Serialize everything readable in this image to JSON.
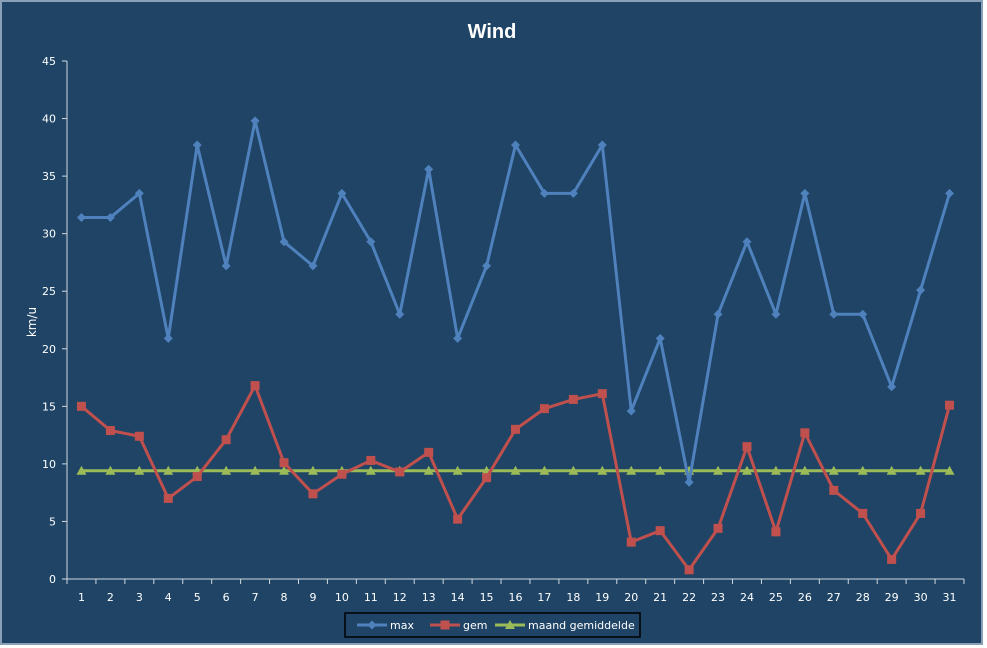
{
  "chart_data": {
    "type": "line",
    "title": "Wind",
    "xlabel": "",
    "ylabel": "km/u",
    "categories": [
      "1",
      "2",
      "3",
      "4",
      "5",
      "6",
      "7",
      "8",
      "9",
      "10",
      "11",
      "12",
      "13",
      "14",
      "15",
      "16",
      "17",
      "18",
      "19",
      "20",
      "21",
      "22",
      "23",
      "24",
      "25",
      "26",
      "27",
      "28",
      "29",
      "30",
      "31"
    ],
    "ylim": [
      0,
      45
    ],
    "yticks": [
      "0",
      "5",
      "10",
      "15",
      "20",
      "25",
      "30",
      "35",
      "40",
      "45"
    ],
    "grid": false,
    "legend_position": "bottom",
    "series": [
      {
        "name": "max",
        "color": "#4f81bd",
        "marker": "diamond",
        "values": [
          31.4,
          31.4,
          33.5,
          20.9,
          37.7,
          27.2,
          39.8,
          29.3,
          27.2,
          33.5,
          29.3,
          23.0,
          35.6,
          20.9,
          27.2,
          37.7,
          33.5,
          33.5,
          37.7,
          14.6,
          20.9,
          8.4,
          23.0,
          29.3,
          23.0,
          33.5,
          23.0,
          23.0,
          16.7,
          25.1,
          33.5
        ]
      },
      {
        "name": "gem",
        "color": "#c0504d",
        "marker": "square",
        "values": [
          15.0,
          12.9,
          12.4,
          7.0,
          8.9,
          12.1,
          16.8,
          10.1,
          7.4,
          9.1,
          10.3,
          9.3,
          11.0,
          5.2,
          8.8,
          13.0,
          14.8,
          15.6,
          16.1,
          3.2,
          4.2,
          0.8,
          4.4,
          11.5,
          4.1,
          12.7,
          7.7,
          5.7,
          1.7,
          5.7,
          15.1
        ]
      },
      {
        "name": "maand gemiddelde",
        "color": "#9bbb59",
        "marker": "triangle",
        "values": [
          9.4,
          9.4,
          9.4,
          9.4,
          9.4,
          9.4,
          9.4,
          9.4,
          9.4,
          9.4,
          9.4,
          9.4,
          9.4,
          9.4,
          9.4,
          9.4,
          9.4,
          9.4,
          9.4,
          9.4,
          9.4,
          9.4,
          9.4,
          9.4,
          9.4,
          9.4,
          9.4,
          9.4,
          9.4,
          9.4,
          9.4
        ]
      }
    ]
  }
}
